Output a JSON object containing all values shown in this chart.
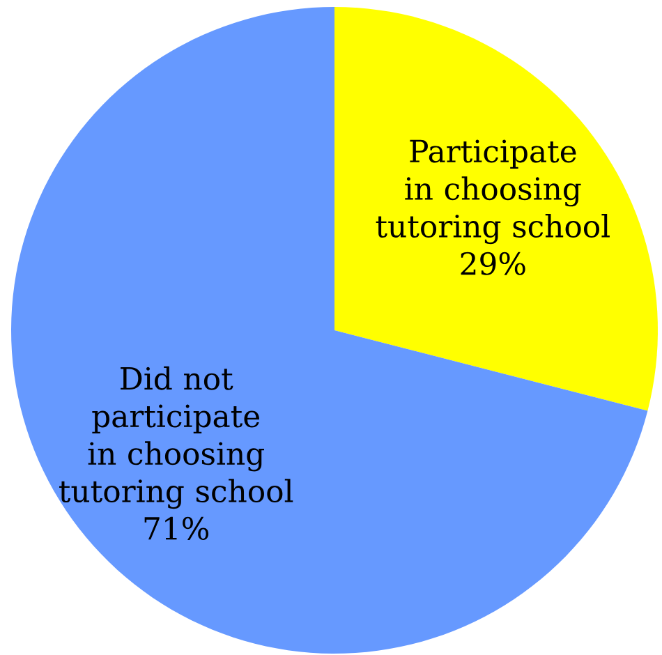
{
  "chart_data": {
    "type": "pie",
    "categories": [
      "Participate in choosing tutoring school",
      "Did not participate in choosing tutoring school"
    ],
    "values": [
      29,
      71
    ],
    "value_labels": [
      "29%",
      "71%"
    ],
    "colors": [
      "#ffff00",
      "#6699ff"
    ]
  }
}
